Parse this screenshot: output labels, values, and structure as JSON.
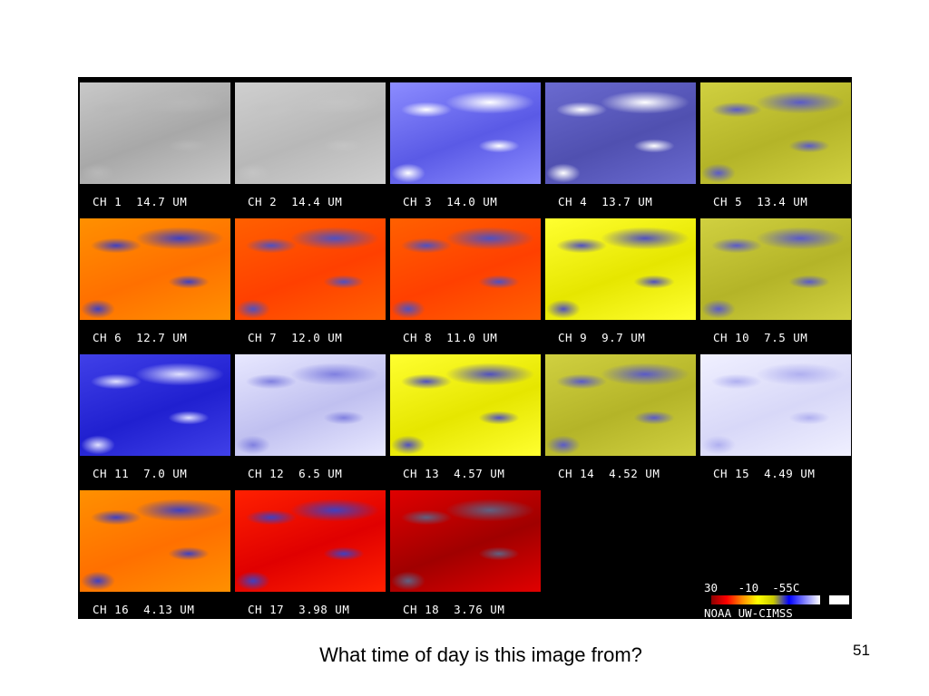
{
  "figure": {
    "panels": [
      {
        "label": "CH 1  14.7 UM",
        "style": "gray"
      },
      {
        "label": "CH 2  14.4 UM",
        "style": "lightgray"
      },
      {
        "label": "CH 3  14.0 UM",
        "style": "blue"
      },
      {
        "label": "CH 4  13.7 UM",
        "style": "darkblue"
      },
      {
        "label": "CH 5  13.4 UM",
        "style": "olive"
      },
      {
        "label": "CH 6  12.7 UM",
        "style": "orange"
      },
      {
        "label": "CH 7  12.0 UM",
        "style": "redorange"
      },
      {
        "label": "CH 8  11.0 UM",
        "style": "redorange"
      },
      {
        "label": "CH 9  9.7 UM",
        "style": "yellow"
      },
      {
        "label": "CH 10  7.5 UM",
        "style": "olive"
      },
      {
        "label": "CH 11  7.0 UM",
        "style": "deepblue"
      },
      {
        "label": "CH 12  6.5 UM",
        "style": "paleblue"
      },
      {
        "label": "CH 13  4.57 UM",
        "style": "yellow"
      },
      {
        "label": "CH 14  4.52 UM",
        "style": "olive"
      },
      {
        "label": "CH 15  4.49 UM",
        "style": "palest"
      },
      {
        "label": "CH 16  4.13 UM",
        "style": "orange"
      },
      {
        "label": "CH 17  3.98 UM",
        "style": "red"
      },
      {
        "label": "CH 18  3.76 UM",
        "style": "darkred"
      }
    ],
    "scale_labels": "30   -10  -55C",
    "credit": "NOAA UW-CIMSS"
  },
  "caption": "What time of day is this image from?",
  "page_number": "51"
}
